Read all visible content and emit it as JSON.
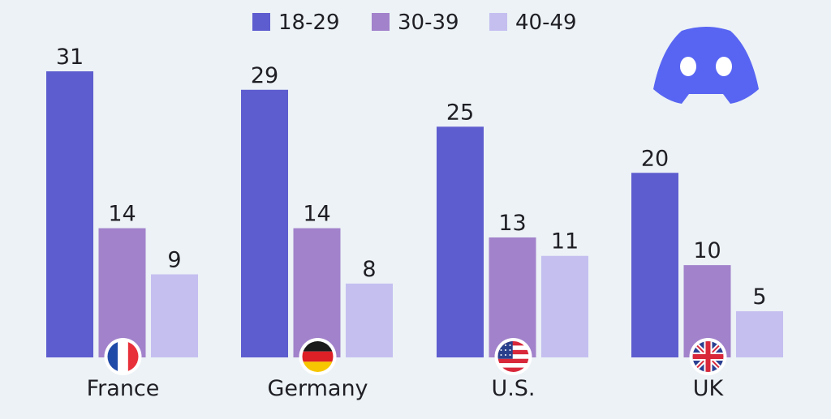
{
  "chart_data": {
    "type": "bar",
    "categories": [
      "France",
      "Germany",
      "U.S.",
      "UK"
    ],
    "category_flags": [
      "france-flag-icon",
      "germany-flag-icon",
      "us-flag-icon",
      "uk-flag-icon"
    ],
    "series": [
      {
        "name": "18-29",
        "color": "#5e5dcf",
        "values": [
          31,
          29,
          25,
          20
        ]
      },
      {
        "name": "30-39",
        "color": "#a282cb",
        "values": [
          14,
          14,
          13,
          10
        ]
      },
      {
        "name": "40-49",
        "color": "#c5bff0",
        "values": [
          9,
          8,
          11,
          5
        ]
      }
    ],
    "ylim": [
      0,
      31
    ],
    "legend_position": "top",
    "grid": false,
    "data_labels": true
  },
  "brand": {
    "logo_icon": "discord-logo-icon",
    "color": "#5865f2"
  },
  "colors": {
    "background": "#ecf2f6",
    "text": "#1e1e24"
  }
}
